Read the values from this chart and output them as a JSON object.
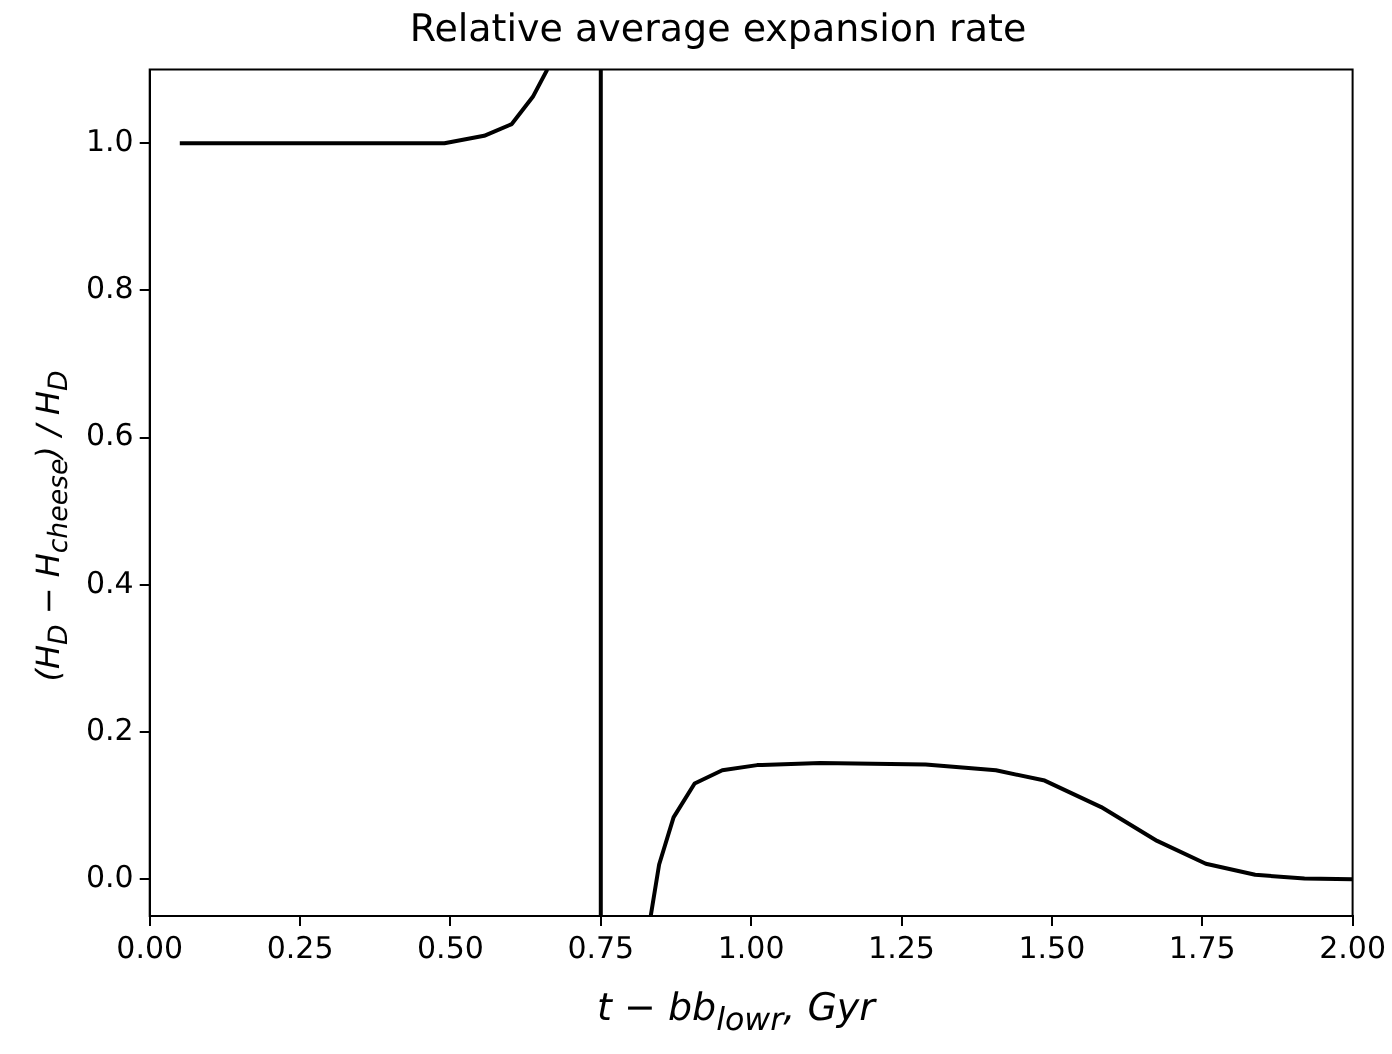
{
  "chart_data": {
    "type": "line",
    "title": "Relative average expansion rate",
    "xlabel": "t − bb$_{low}$$_{r}$, Gyr",
    "ylabel": "(H$_{D}$ − H$_{cheese}$) / H$_{D}$",
    "xlim": [
      0,
      2
    ],
    "ylim": [
      -0.05,
      1.1
    ],
    "xticks": [
      {
        "value": 0,
        "label": "0.00"
      },
      {
        "value": 0.25,
        "label": "0.25"
      },
      {
        "value": 0.5,
        "label": "0.50"
      },
      {
        "value": 0.75,
        "label": "0.75"
      },
      {
        "value": 1,
        "label": "1.00"
      },
      {
        "value": 1.25,
        "label": "1.25"
      },
      {
        "value": 1.5,
        "label": "1.50"
      },
      {
        "value": 1.75,
        "label": "1.75"
      },
      {
        "value": 2,
        "label": "2.00"
      }
    ],
    "yticks": [
      {
        "value": 0,
        "label": "0.0"
      },
      {
        "value": 0.2,
        "label": "0.2"
      },
      {
        "value": 0.4,
        "label": "0.4"
      },
      {
        "value": 0.6,
        "label": "0.6"
      },
      {
        "value": 0.8,
        "label": "0.8"
      },
      {
        "value": 1,
        "label": "1.0"
      }
    ],
    "series": [
      {
        "color": "#000000",
        "x": [
          0.05,
          0.2,
          0.35,
          0.49,
          0.556,
          0.602,
          0.637,
          0.661
        ],
        "values": [
          1.0,
          1.0,
          1.0,
          1.0,
          1.01,
          1.026,
          1.063,
          1.1
        ]
      },
      {
        "color": "#000000",
        "x": [
          0.833,
          0.847,
          0.871,
          0.906,
          0.952,
          1.01,
          1.115,
          1.29,
          1.407,
          1.488,
          1.582,
          1.675,
          1.756,
          1.838,
          1.92,
          2.0
        ],
        "values": [
          -0.05,
          0.02,
          0.084,
          0.13,
          0.148,
          0.155,
          0.158,
          0.156,
          0.148,
          0.134,
          0.098,
          0.052,
          0.021,
          0.006,
          0.001,
          0.0
        ]
      }
    ],
    "ref_lines": [
      {
        "axis": "x",
        "value": 0.75,
        "color": "#000000"
      }
    ]
  }
}
